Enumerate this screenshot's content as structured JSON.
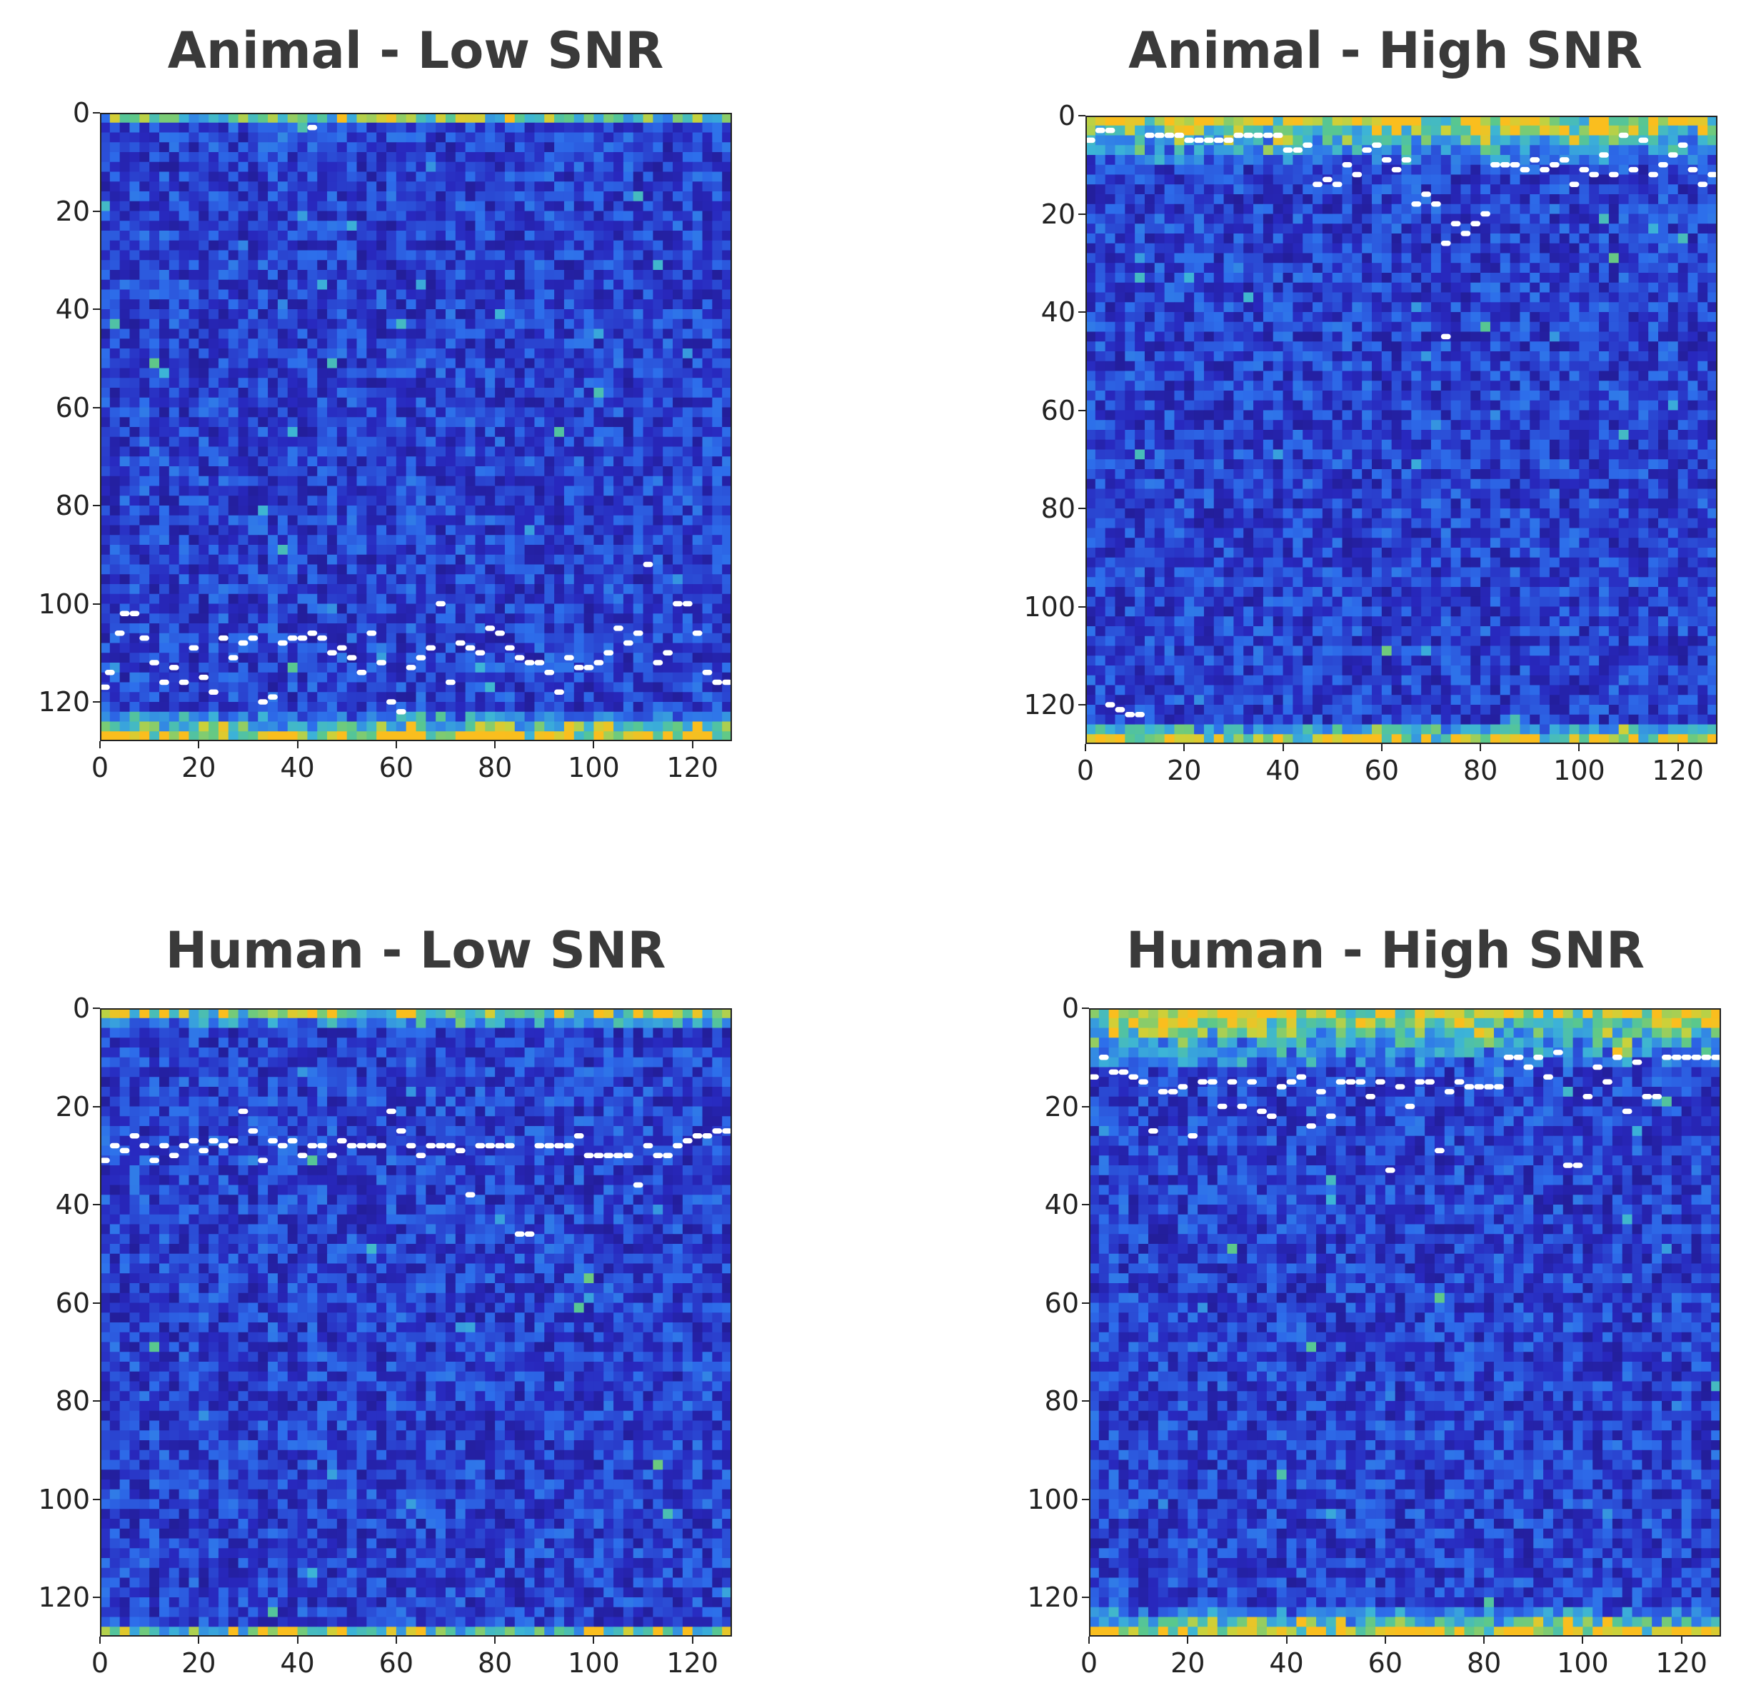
{
  "chart_data": [
    {
      "type": "heatmap",
      "title": "Animal - Low SNR",
      "xlim": [
        0,
        128
      ],
      "ylim": [
        128,
        0
      ],
      "xticks": [
        "0",
        "20",
        "40",
        "60",
        "80",
        "100",
        "120"
      ],
      "yticks": [
        "0",
        "20",
        "40",
        "60",
        "80",
        "100",
        "120"
      ],
      "band_top": 3,
      "band_bottom": 6,
      "trace_points": [
        [
          1,
          117
        ],
        [
          2,
          114
        ],
        [
          4,
          106
        ],
        [
          5,
          102
        ],
        [
          7,
          102
        ],
        [
          9,
          107
        ],
        [
          11,
          112
        ],
        [
          13,
          116
        ],
        [
          15,
          113
        ],
        [
          17,
          116
        ],
        [
          19,
          109
        ],
        [
          21,
          115
        ],
        [
          23,
          118
        ],
        [
          25,
          107
        ],
        [
          27,
          111
        ],
        [
          29,
          108
        ],
        [
          31,
          107
        ],
        [
          33,
          120
        ],
        [
          35,
          119
        ],
        [
          37,
          108
        ],
        [
          39,
          107
        ],
        [
          41,
          107
        ],
        [
          43,
          106
        ],
        [
          45,
          107
        ],
        [
          47,
          110
        ],
        [
          49,
          109
        ],
        [
          51,
          111
        ],
        [
          53,
          114
        ],
        [
          55,
          106
        ],
        [
          57,
          112
        ],
        [
          59,
          120
        ],
        [
          61,
          122
        ],
        [
          63,
          113
        ],
        [
          65,
          111
        ],
        [
          67,
          109
        ],
        [
          69,
          100
        ],
        [
          71,
          116
        ],
        [
          73,
          108
        ],
        [
          75,
          109
        ],
        [
          77,
          110
        ],
        [
          79,
          105
        ],
        [
          81,
          106
        ],
        [
          83,
          109
        ],
        [
          85,
          111
        ],
        [
          87,
          112
        ],
        [
          89,
          112
        ],
        [
          91,
          114
        ],
        [
          93,
          118
        ],
        [
          95,
          111
        ],
        [
          97,
          113
        ],
        [
          99,
          113
        ],
        [
          101,
          112
        ],
        [
          103,
          110
        ],
        [
          105,
          105
        ],
        [
          107,
          108
        ],
        [
          109,
          106
        ],
        [
          111,
          92
        ],
        [
          113,
          112
        ],
        [
          115,
          110
        ],
        [
          117,
          100
        ],
        [
          119,
          100
        ],
        [
          121,
          106
        ],
        [
          123,
          114
        ],
        [
          125,
          116
        ],
        [
          127,
          116
        ],
        [
          43,
          3
        ]
      ]
    },
    {
      "type": "heatmap",
      "title": "Animal - High SNR",
      "xlim": [
        0,
        128
      ],
      "ylim": [
        128,
        0
      ],
      "xticks": [
        "0",
        "20",
        "40",
        "60",
        "80",
        "100",
        "120"
      ],
      "yticks": [
        "0",
        "20",
        "40",
        "60",
        "80",
        "100",
        "120"
      ],
      "band_top": 10,
      "band_bottom": 5,
      "trace_points": [
        [
          1,
          5
        ],
        [
          3,
          3
        ],
        [
          5,
          3
        ],
        [
          13,
          4
        ],
        [
          15,
          4
        ],
        [
          17,
          4
        ],
        [
          19,
          4
        ],
        [
          21,
          5
        ],
        [
          23,
          5
        ],
        [
          25,
          5
        ],
        [
          27,
          5
        ],
        [
          29,
          5
        ],
        [
          31,
          4
        ],
        [
          33,
          4
        ],
        [
          35,
          4
        ],
        [
          37,
          4
        ],
        [
          39,
          4
        ],
        [
          41,
          7
        ],
        [
          43,
          7
        ],
        [
          45,
          6
        ],
        [
          47,
          14
        ],
        [
          49,
          13
        ],
        [
          51,
          14
        ],
        [
          53,
          10
        ],
        [
          55,
          12
        ],
        [
          57,
          7
        ],
        [
          59,
          6
        ],
        [
          61,
          9
        ],
        [
          63,
          11
        ],
        [
          65,
          9
        ],
        [
          67,
          18
        ],
        [
          69,
          16
        ],
        [
          71,
          18
        ],
        [
          73,
          26
        ],
        [
          75,
          22
        ],
        [
          77,
          24
        ],
        [
          79,
          22
        ],
        [
          81,
          20
        ],
        [
          83,
          10
        ],
        [
          85,
          10
        ],
        [
          87,
          10
        ],
        [
          89,
          11
        ],
        [
          91,
          9
        ],
        [
          93,
          11
        ],
        [
          95,
          10
        ],
        [
          97,
          9
        ],
        [
          99,
          14
        ],
        [
          101,
          11
        ],
        [
          103,
          12
        ],
        [
          105,
          8
        ],
        [
          107,
          12
        ],
        [
          109,
          4
        ],
        [
          111,
          11
        ],
        [
          113,
          5
        ],
        [
          115,
          12
        ],
        [
          117,
          10
        ],
        [
          119,
          8
        ],
        [
          121,
          6
        ],
        [
          123,
          11
        ],
        [
          125,
          14
        ],
        [
          127,
          12
        ],
        [
          73,
          45
        ],
        [
          5,
          120
        ],
        [
          7,
          121
        ],
        [
          9,
          122
        ],
        [
          11,
          122
        ]
      ]
    },
    {
      "type": "heatmap",
      "title": "Human - Low SNR",
      "xlim": [
        0,
        128
      ],
      "ylim": [
        128,
        0
      ],
      "xticks": [
        "0",
        "20",
        "40",
        "60",
        "80",
        "100",
        "120"
      ],
      "yticks": [
        "0",
        "20",
        "40",
        "60",
        "80",
        "100",
        "120"
      ],
      "band_top": 4,
      "band_bottom": 3,
      "trace_points": [
        [
          1,
          31
        ],
        [
          3,
          28
        ],
        [
          5,
          29
        ],
        [
          7,
          26
        ],
        [
          9,
          28
        ],
        [
          11,
          31
        ],
        [
          13,
          28
        ],
        [
          15,
          30
        ],
        [
          17,
          28
        ],
        [
          19,
          27
        ],
        [
          21,
          29
        ],
        [
          23,
          27
        ],
        [
          25,
          28
        ],
        [
          27,
          27
        ],
        [
          29,
          21
        ],
        [
          31,
          25
        ],
        [
          33,
          31
        ],
        [
          35,
          27
        ],
        [
          37,
          28
        ],
        [
          39,
          27
        ],
        [
          41,
          30
        ],
        [
          43,
          28
        ],
        [
          45,
          28
        ],
        [
          47,
          30
        ],
        [
          49,
          27
        ],
        [
          51,
          28
        ],
        [
          53,
          28
        ],
        [
          55,
          28
        ],
        [
          57,
          28
        ],
        [
          59,
          21
        ],
        [
          61,
          25
        ],
        [
          63,
          28
        ],
        [
          65,
          30
        ],
        [
          67,
          28
        ],
        [
          69,
          28
        ],
        [
          71,
          28
        ],
        [
          73,
          29
        ],
        [
          75,
          38
        ],
        [
          77,
          28
        ],
        [
          79,
          28
        ],
        [
          81,
          28
        ],
        [
          83,
          28
        ],
        [
          85,
          46
        ],
        [
          87,
          46
        ],
        [
          89,
          28
        ],
        [
          91,
          28
        ],
        [
          93,
          28
        ],
        [
          95,
          28
        ],
        [
          97,
          26
        ],
        [
          99,
          30
        ],
        [
          101,
          30
        ],
        [
          103,
          30
        ],
        [
          105,
          30
        ],
        [
          107,
          30
        ],
        [
          109,
          36
        ],
        [
          111,
          28
        ],
        [
          113,
          30
        ],
        [
          115,
          30
        ],
        [
          117,
          28
        ],
        [
          119,
          27
        ],
        [
          121,
          26
        ],
        [
          123,
          26
        ],
        [
          125,
          25
        ],
        [
          127,
          25
        ]
      ]
    },
    {
      "type": "heatmap",
      "title": "Human - High SNR",
      "xlim": [
        0,
        128
      ],
      "ylim": [
        128,
        0
      ],
      "xticks": [
        "0",
        "20",
        "40",
        "60",
        "80",
        "100",
        "120"
      ],
      "yticks": [
        "0",
        "20",
        "40",
        "60",
        "80",
        "100",
        "120"
      ],
      "band_top": 12,
      "band_bottom": 6,
      "trace_points": [
        [
          1,
          14
        ],
        [
          3,
          10
        ],
        [
          5,
          13
        ],
        [
          7,
          13
        ],
        [
          9,
          14
        ],
        [
          11,
          15
        ],
        [
          13,
          25
        ],
        [
          15,
          17
        ],
        [
          17,
          17
        ],
        [
          19,
          16
        ],
        [
          21,
          26
        ],
        [
          23,
          15
        ],
        [
          25,
          15
        ],
        [
          27,
          20
        ],
        [
          29,
          15
        ],
        [
          31,
          20
        ],
        [
          33,
          15
        ],
        [
          35,
          21
        ],
        [
          37,
          22
        ],
        [
          39,
          16
        ],
        [
          41,
          15
        ],
        [
          43,
          14
        ],
        [
          45,
          24
        ],
        [
          47,
          17
        ],
        [
          49,
          22
        ],
        [
          51,
          15
        ],
        [
          53,
          15
        ],
        [
          55,
          15
        ],
        [
          57,
          18
        ],
        [
          59,
          15
        ],
        [
          61,
          33
        ],
        [
          63,
          16
        ],
        [
          65,
          20
        ],
        [
          67,
          15
        ],
        [
          69,
          15
        ],
        [
          71,
          29
        ],
        [
          73,
          17
        ],
        [
          75,
          15
        ],
        [
          77,
          16
        ],
        [
          79,
          16
        ],
        [
          81,
          16
        ],
        [
          83,
          16
        ],
        [
          85,
          10
        ],
        [
          87,
          10
        ],
        [
          89,
          12
        ],
        [
          91,
          10
        ],
        [
          93,
          14
        ],
        [
          95,
          9
        ],
        [
          97,
          32
        ],
        [
          99,
          32
        ],
        [
          101,
          18
        ],
        [
          103,
          12
        ],
        [
          105,
          15
        ],
        [
          107,
          10
        ],
        [
          109,
          21
        ],
        [
          111,
          11
        ],
        [
          113,
          18
        ],
        [
          115,
          18
        ],
        [
          117,
          10
        ],
        [
          119,
          10
        ],
        [
          121,
          10
        ],
        [
          123,
          10
        ],
        [
          125,
          10
        ],
        [
          127,
          10
        ]
      ]
    }
  ]
}
